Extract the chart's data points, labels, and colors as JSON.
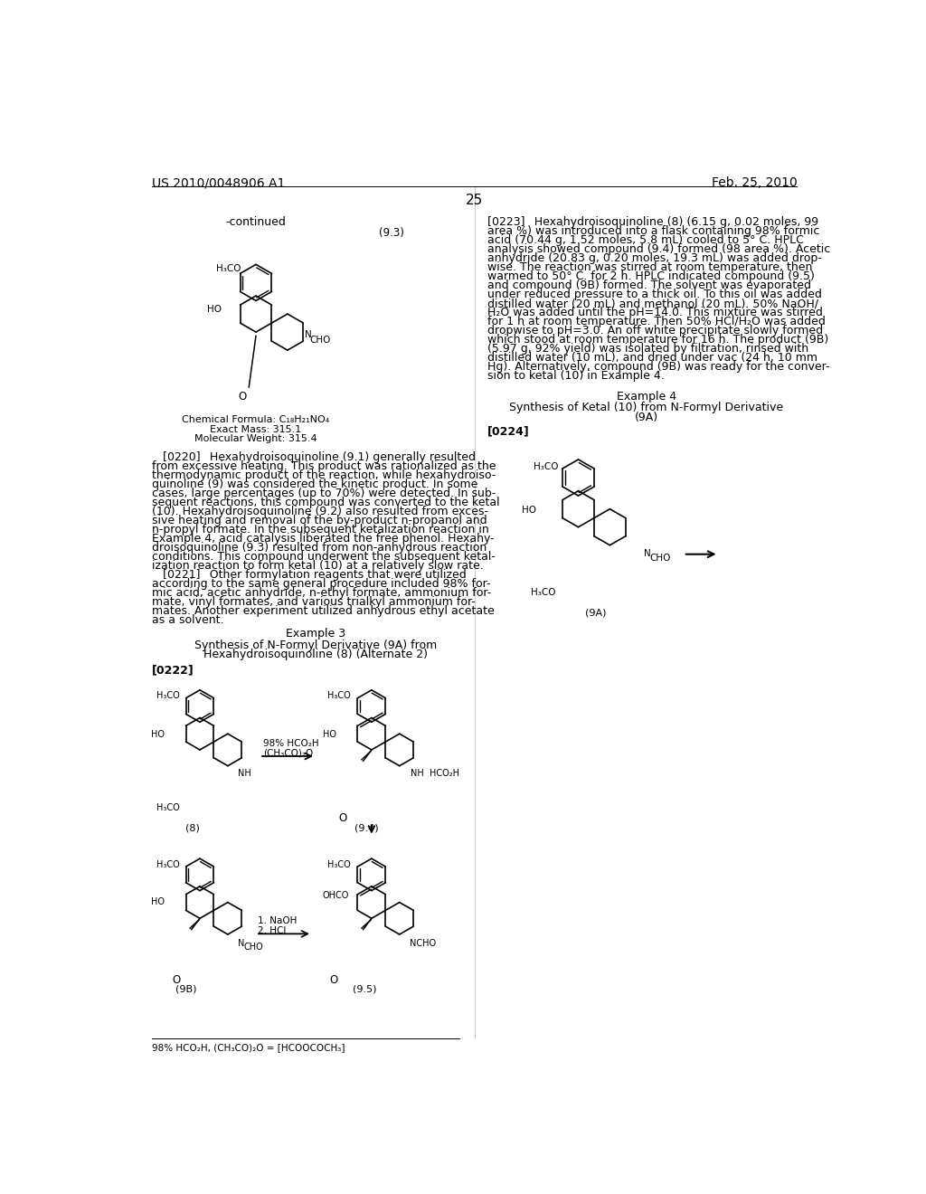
{
  "page_header_left": "US 2010/0048906 A1",
  "page_header_right": "Feb. 25, 2010",
  "page_number": "25",
  "background_color": "#ffffff"
}
